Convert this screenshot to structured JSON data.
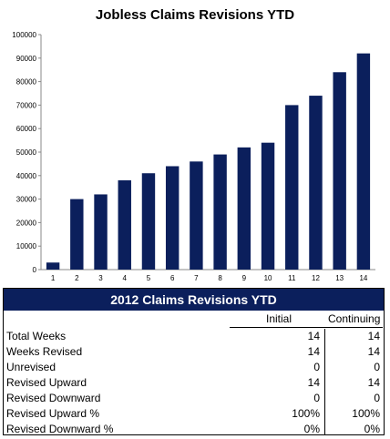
{
  "chart_data": {
    "type": "bar",
    "title": "Jobless Claims Revisions YTD",
    "categories": [
      "1",
      "2",
      "3",
      "4",
      "5",
      "6",
      "7",
      "8",
      "9",
      "10",
      "11",
      "12",
      "13",
      "14"
    ],
    "values": [
      3000,
      30000,
      32000,
      38000,
      41000,
      44000,
      46000,
      49000,
      52000,
      54000,
      70000,
      74000,
      84000,
      92000
    ],
    "ylim": [
      0,
      100000
    ],
    "yticks": [
      "0",
      "10000",
      "20000",
      "30000",
      "40000",
      "50000",
      "60000",
      "70000",
      "80000",
      "90000",
      "100000"
    ],
    "xlabel": "",
    "ylabel": "",
    "grid": false,
    "bar_color": "#0b1f5c"
  },
  "table": {
    "title": "2012 Claims Revisions YTD",
    "col_initial": "Initial",
    "col_continuing": "Continuing",
    "rows": [
      {
        "label": "Total Weeks",
        "initial": "14",
        "continuing": "14"
      },
      {
        "label": "Weeks Revised",
        "initial": "14",
        "continuing": "14"
      },
      {
        "label": "Unrevised",
        "initial": "0",
        "continuing": "0"
      },
      {
        "label": "Revised Upward",
        "initial": "14",
        "continuing": "14"
      },
      {
        "label": "Revised Downward",
        "initial": "0",
        "continuing": "0"
      },
      {
        "label": "Revised Upward %",
        "initial": "100%",
        "continuing": "100%"
      },
      {
        "label": "Revised Downward %",
        "initial": "0%",
        "continuing": "0%"
      }
    ]
  }
}
